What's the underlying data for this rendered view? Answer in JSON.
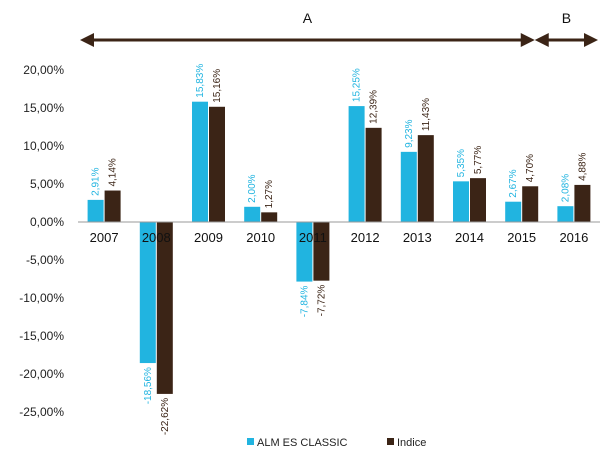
{
  "chart_data": {
    "type": "bar",
    "categories": [
      "2007",
      "2008",
      "2009",
      "2010",
      "2011",
      "2012",
      "2013",
      "2014",
      "2015",
      "2016"
    ],
    "series": [
      {
        "name": "ALM ES CLASSIC",
        "color": "#21B4E0",
        "values": [
          2.91,
          -18.56,
          15.83,
          2.0,
          -7.84,
          15.25,
          9.23,
          5.35,
          2.67,
          2.08
        ],
        "labels": [
          "2,91%",
          "-18,56%",
          "15,83%",
          "2,00%",
          "-7,84%",
          "15,25%",
          "9,23%",
          "5,35%",
          "2,67%",
          "2,08%"
        ]
      },
      {
        "name": "Indice",
        "color": "#3B2416",
        "values": [
          4.14,
          -22.62,
          15.16,
          1.27,
          -7.72,
          12.39,
          11.43,
          5.77,
          4.7,
          4.88
        ],
        "labels": [
          "4,14%",
          "-22,62%",
          "15,16%",
          "1,27%",
          "-7,72%",
          "12,39%",
          "11,43%",
          "5,77%",
          "4,70%",
          "4,88%"
        ]
      }
    ],
    "y_ticks": [
      "20,00%",
      "15,00%",
      "10,00%",
      "5,00%",
      "0,00%",
      "-5,00%",
      "-10,00%",
      "-15,00%",
      "-20,00%",
      "-25,00%"
    ],
    "ylim": [
      -25,
      20
    ],
    "grid": false,
    "legend": "bottom",
    "periods": [
      {
        "label": "A",
        "from": "2007",
        "to": "2015"
      },
      {
        "label": "B",
        "from": "2015",
        "to": "2016"
      }
    ],
    "arrow_color": "#3B2416"
  }
}
